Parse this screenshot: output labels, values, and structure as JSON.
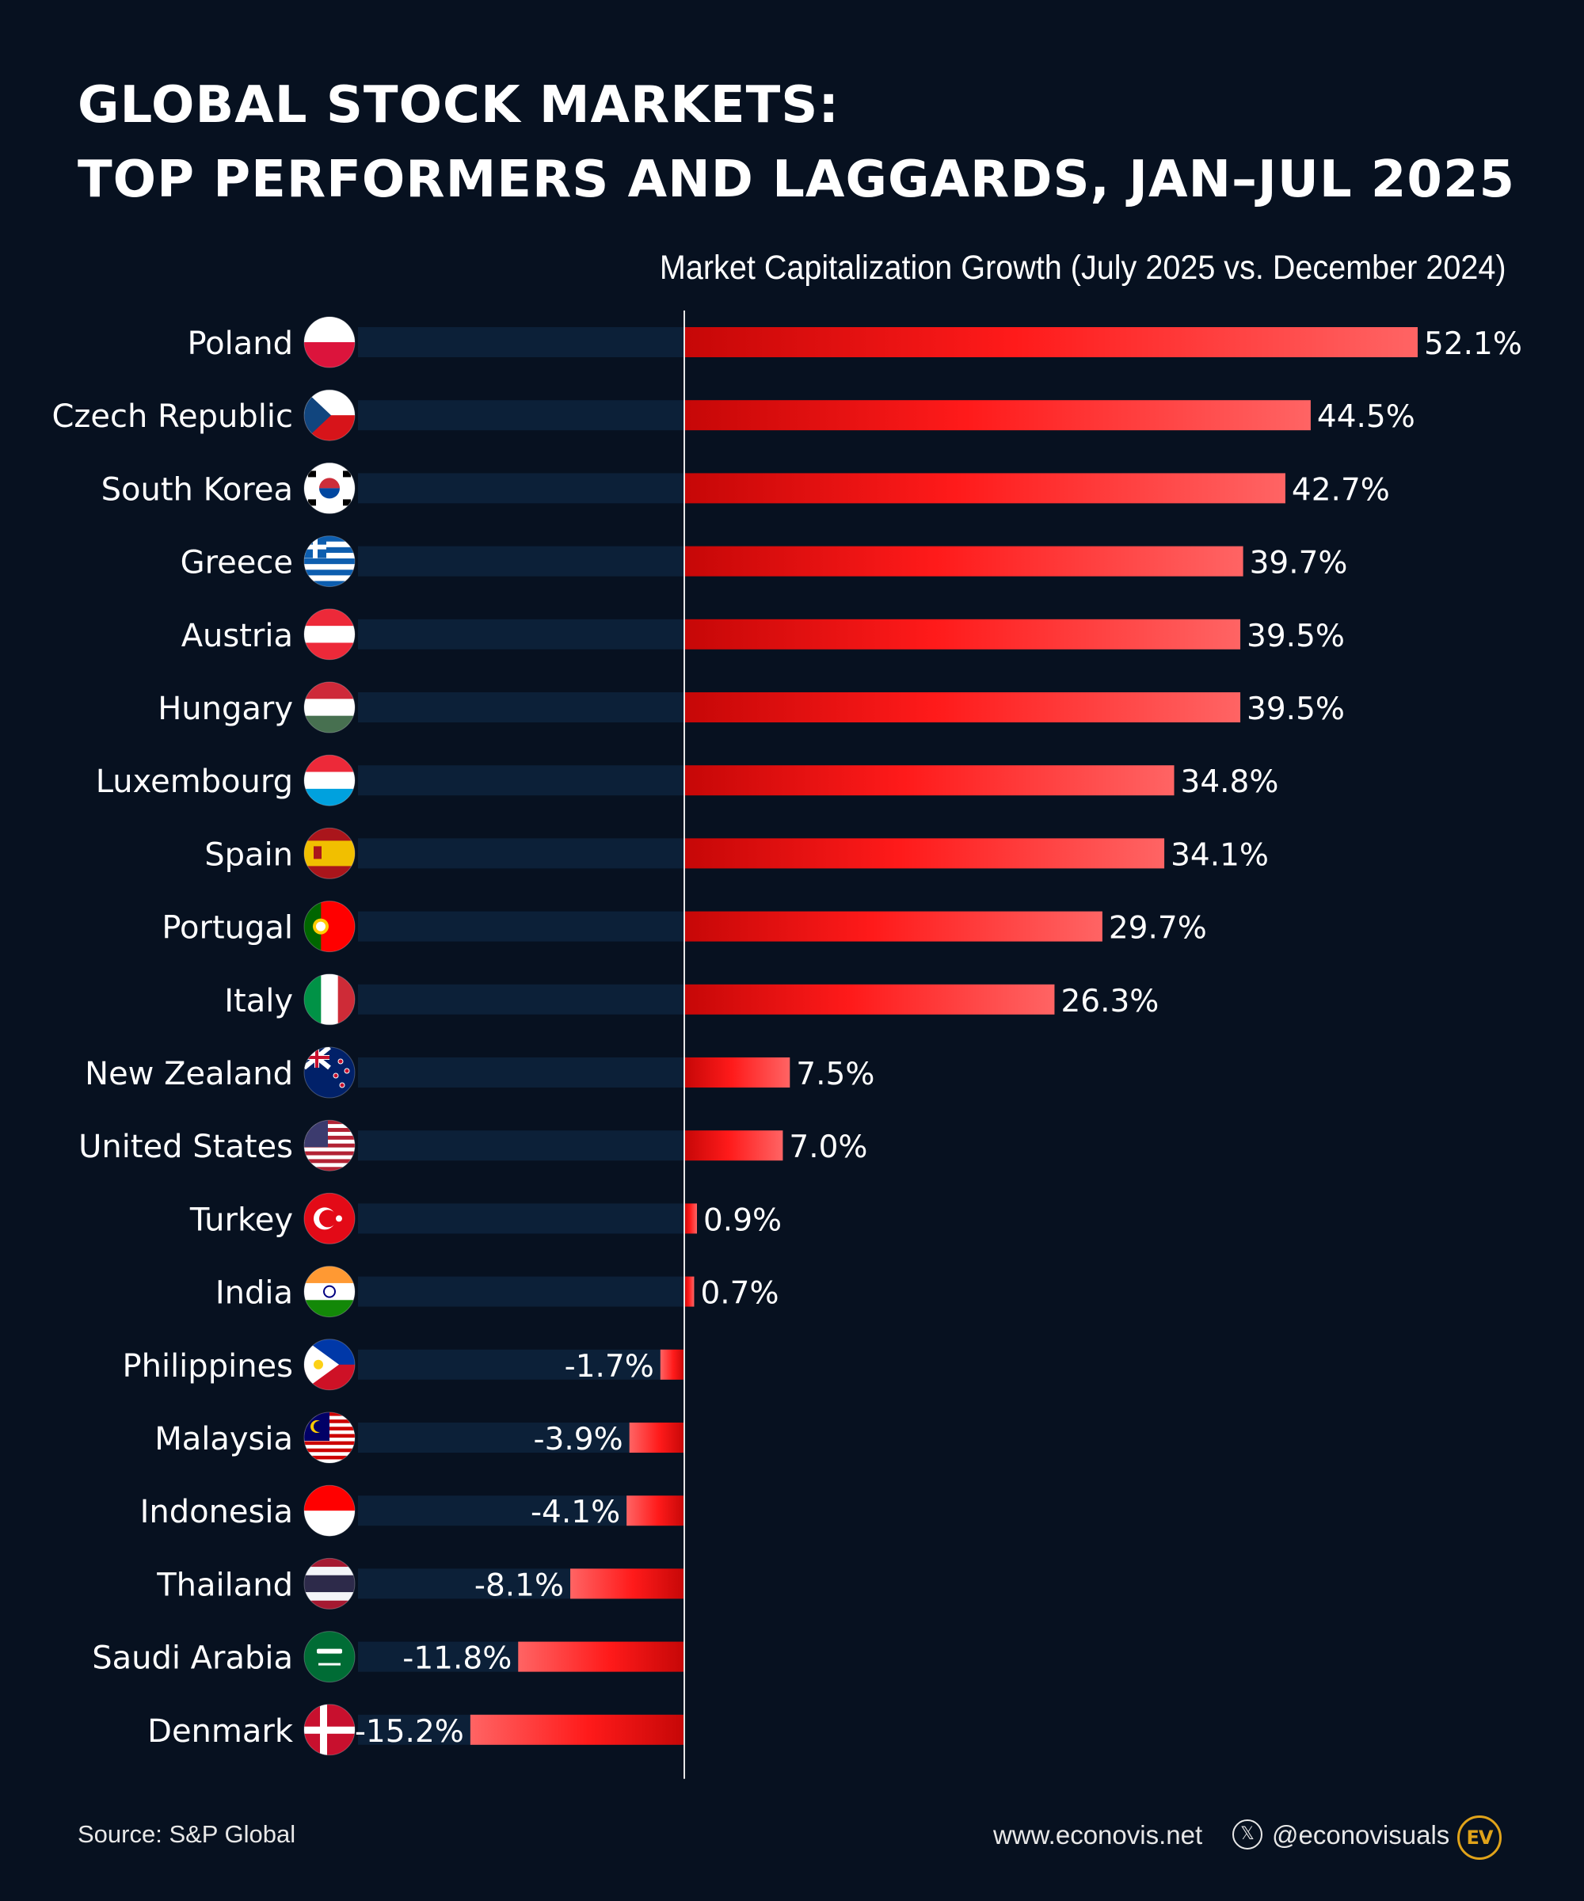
{
  "header": {
    "title_line1": "GLOBAL STOCK MARKETS:",
    "title_line2": "TOP PERFORMERS AND LAGGARDS, JAN–JUL 2025"
  },
  "chart_data": {
    "type": "bar",
    "orientation": "horizontal",
    "title": "GLOBAL STOCK MARKETS: TOP PERFORMERS AND LAGGARDS, JAN–JUL 2025",
    "subtitle": "Market Capitalization Growth (July 2025 vs. December 2024)",
    "unit": "%",
    "categories": [
      "Poland",
      "Czech Republic",
      "South Korea",
      "Greece",
      "Austria",
      "Hungary",
      "Luxembourg",
      "Spain",
      "Portugal",
      "Italy",
      "New Zealand",
      "United States",
      "Turkey",
      "India",
      "Philippines",
      "Malaysia",
      "Indonesia",
      "Thailand",
      "Saudi Arabia",
      "Denmark"
    ],
    "values": [
      52.1,
      44.5,
      42.7,
      39.7,
      39.5,
      39.5,
      34.8,
      34.1,
      29.7,
      26.3,
      7.5,
      7.0,
      0.9,
      0.7,
      -1.7,
      -3.9,
      -4.1,
      -8.1,
      -11.8,
      -15.2
    ],
    "labels": [
      "52.1%",
      "44.5%",
      "42.7%",
      "39.7%",
      "39.5%",
      "39.5%",
      "34.8%",
      "34.1%",
      "29.7%",
      "26.3%",
      "7.5%",
      "7.0%",
      "0.9%",
      "0.7%",
      "-1.7%",
      "-3.9%",
      "-4.1%",
      "-8.1%",
      "-11.8%",
      "-15.2%"
    ],
    "flags": [
      "poland-flag-icon",
      "czech-republic-flag-icon",
      "south-korea-flag-icon",
      "greece-flag-icon",
      "austria-flag-icon",
      "hungary-flag-icon",
      "luxembourg-flag-icon",
      "spain-flag-icon",
      "portugal-flag-icon",
      "italy-flag-icon",
      "new-zealand-flag-icon",
      "united-states-flag-icon",
      "turkey-flag-icon",
      "india-flag-icon",
      "philippines-flag-icon",
      "malaysia-flag-icon",
      "indonesia-flag-icon",
      "thailand-flag-icon",
      "saudi-arabia-flag-icon",
      "denmark-flag-icon"
    ],
    "xlim": [
      -23.2,
      52.1
    ],
    "colors": {
      "bar_dark": "#c60707",
      "bar_mid": "#ff1a1a",
      "bar_light": "#ff6464",
      "track": "#0c2038",
      "background": "#071120"
    }
  },
  "footer": {
    "source": "Source: S&P Global",
    "website": "www.econovis.net",
    "x_glyph": "𝕏",
    "handle": "@econovisuals",
    "logo": "EV"
  }
}
